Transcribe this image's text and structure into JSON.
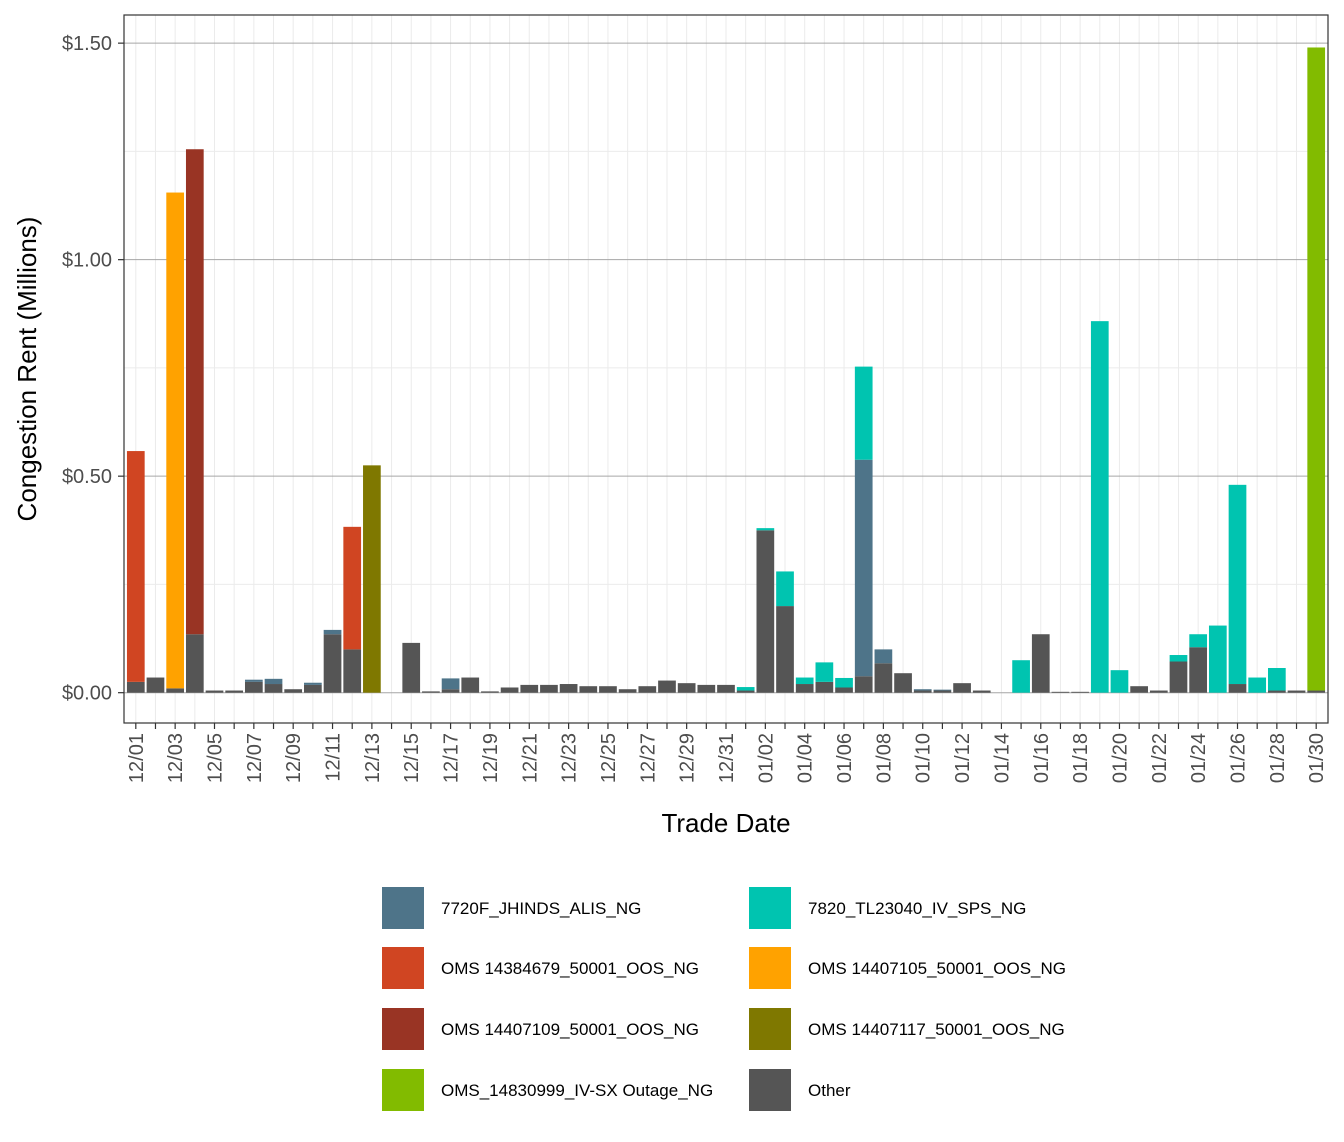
{
  "chart_data": {
    "type": "bar",
    "stacked": true,
    "xlabel": "Trade Date",
    "ylabel": "Congestion Rent (Millions)",
    "ylim": [
      -0.07,
      1.565
    ],
    "y_ticks": [
      0,
      0.5,
      1.0,
      1.5
    ],
    "y_tick_labels": [
      "$0.00",
      "$0.50",
      "$1.00",
      "$1.50"
    ],
    "grid": true,
    "legend_position": "bottom",
    "categories": [
      "12/01",
      "12/02",
      "12/03",
      "12/04",
      "12/05",
      "12/06",
      "12/07",
      "12/08",
      "12/09",
      "12/10",
      "12/11",
      "12/12",
      "12/13",
      "12/14",
      "12/15",
      "12/16",
      "12/17",
      "12/18",
      "12/19",
      "12/20",
      "12/21",
      "12/22",
      "12/23",
      "12/24",
      "12/25",
      "12/26",
      "12/27",
      "12/28",
      "12/29",
      "12/30",
      "12/31",
      "01/01",
      "01/02",
      "01/03",
      "01/04",
      "01/05",
      "01/06",
      "01/07",
      "01/08",
      "01/09",
      "01/10",
      "01/11",
      "01/12",
      "01/13",
      "01/14",
      "01/15",
      "01/16",
      "01/17",
      "01/18",
      "01/19",
      "01/20",
      "01/21",
      "01/22",
      "01/23",
      "01/24",
      "01/25",
      "01/26",
      "01/27",
      "01/28",
      "01/29",
      "01/30"
    ],
    "x_tick_labels": [
      "12/01",
      "12/03",
      "12/05",
      "12/07",
      "12/09",
      "12/11",
      "12/13",
      "12/15",
      "12/17",
      "12/19",
      "12/21",
      "12/23",
      "12/25",
      "12/27",
      "12/29",
      "12/31",
      "01/02",
      "01/04",
      "01/06",
      "01/08",
      "01/10",
      "01/12",
      "01/14",
      "01/16",
      "01/18",
      "01/20",
      "01/22",
      "01/24",
      "01/26",
      "01/28",
      "01/30"
    ],
    "series": [
      {
        "name": "Other",
        "color": "#555555",
        "values": [
          0.025,
          0.035,
          0.01,
          0.135,
          0.005,
          0.005,
          0.025,
          0.02,
          0.008,
          0.018,
          0.135,
          0.1,
          0,
          0,
          0.115,
          0.003,
          0.008,
          0.035,
          0.003,
          0.012,
          0.018,
          0.018,
          0.02,
          0.015,
          0.015,
          0.008,
          0.015,
          0.028,
          0.022,
          0.018,
          0.018,
          0.005,
          0.375,
          0.2,
          0.02,
          0.025,
          0.012,
          0.038,
          0.068,
          0.045,
          0.005,
          0.005,
          0.022,
          0.005,
          0,
          0,
          0.135,
          0.002,
          0.002,
          0,
          0,
          0.015,
          0.005,
          0.072,
          0.105,
          0,
          0.02,
          0,
          0.005,
          0.005,
          0.005
        ]
      },
      {
        "name": "7720F_JHINDS_ALIS_NG",
        "color": "#4e7489",
        "values": [
          0,
          0,
          0,
          0,
          0,
          0,
          0.005,
          0.012,
          0,
          0.005,
          0.01,
          0,
          0,
          0,
          0,
          0,
          0.025,
          0,
          0,
          0,
          0,
          0,
          0,
          0,
          0,
          0,
          0,
          0,
          0,
          0,
          0,
          0,
          0,
          0,
          0,
          0,
          0,
          0.5,
          0.032,
          0,
          0.003,
          0.002,
          0,
          0,
          0,
          0,
          0,
          0,
          0,
          0,
          0,
          0,
          0,
          0,
          0,
          0,
          0,
          0,
          0,
          0,
          0
        ]
      },
      {
        "name": "7820_TL23040_IV_SPS_NG",
        "color": "#00c4b0",
        "values": [
          0,
          0,
          0,
          0,
          0,
          0,
          0,
          0,
          0,
          0,
          0,
          0,
          0,
          0,
          0,
          0,
          0,
          0,
          0,
          0,
          0,
          0,
          0,
          0,
          0,
          0,
          0,
          0,
          0,
          0,
          0,
          0.008,
          0.005,
          0.08,
          0.015,
          0.045,
          0.022,
          0.215,
          0,
          0,
          0,
          0,
          0,
          0,
          0,
          0.075,
          0,
          0,
          0,
          0.858,
          0.052,
          0,
          0,
          0.015,
          0.03,
          0.155,
          0.46,
          0.035,
          0.052,
          0,
          0
        ]
      },
      {
        "name": "OMS 14384679_50001_OOS_NG",
        "color": "#d04522",
        "values": [
          0.533,
          0,
          0,
          0,
          0,
          0,
          0,
          0,
          0,
          0,
          0,
          0.283,
          0,
          0,
          0,
          0,
          0,
          0,
          0,
          0,
          0,
          0,
          0,
          0,
          0,
          0,
          0,
          0,
          0,
          0,
          0,
          0,
          0,
          0,
          0,
          0,
          0,
          0,
          0,
          0,
          0,
          0,
          0,
          0,
          0,
          0,
          0,
          0,
          0,
          0,
          0,
          0,
          0,
          0,
          0,
          0,
          0,
          0,
          0,
          0,
          0
        ]
      },
      {
        "name": "OMS 14407105_50001_OOS_NG",
        "color": "#ffa200",
        "values": [
          0,
          0,
          1.145,
          0,
          0,
          0,
          0,
          0,
          0,
          0,
          0,
          0,
          0,
          0,
          0,
          0,
          0,
          0,
          0,
          0,
          0,
          0,
          0,
          0,
          0,
          0,
          0,
          0,
          0,
          0,
          0,
          0,
          0,
          0,
          0,
          0,
          0,
          0,
          0,
          0,
          0,
          0,
          0,
          0,
          0,
          0,
          0,
          0,
          0,
          0,
          0,
          0,
          0,
          0,
          0,
          0,
          0,
          0,
          0,
          0,
          0
        ]
      },
      {
        "name": "OMS 14407109_50001_OOS_NG",
        "color": "#993424",
        "values": [
          0,
          0,
          0,
          1.12,
          0,
          0,
          0,
          0,
          0,
          0,
          0,
          0,
          0,
          0,
          0,
          0,
          0,
          0,
          0,
          0,
          0,
          0,
          0,
          0,
          0,
          0,
          0,
          0,
          0,
          0,
          0,
          0,
          0,
          0,
          0,
          0,
          0,
          0,
          0,
          0,
          0,
          0,
          0,
          0,
          0,
          0,
          0,
          0,
          0,
          0,
          0,
          0,
          0,
          0,
          0,
          0,
          0,
          0,
          0,
          0,
          0
        ]
      },
      {
        "name": "OMS 14407117_50001_OOS_NG",
        "color": "#7f7800",
        "values": [
          0,
          0,
          0,
          0,
          0,
          0,
          0,
          0,
          0,
          0,
          0,
          0,
          0.525,
          0,
          0,
          0,
          0,
          0,
          0,
          0,
          0,
          0,
          0,
          0,
          0,
          0,
          0,
          0,
          0,
          0,
          0,
          0,
          0,
          0,
          0,
          0,
          0,
          0,
          0,
          0,
          0,
          0,
          0,
          0,
          0,
          0,
          0,
          0,
          0,
          0,
          0,
          0,
          0,
          0,
          0,
          0,
          0,
          0,
          0,
          0,
          0
        ]
      },
      {
        "name": "OMS_14830999_IV-SX Outage_NG",
        "color": "#82bb00",
        "values": [
          0,
          0,
          0,
          0,
          0,
          0,
          0,
          0,
          0,
          0,
          0,
          0,
          0,
          0,
          0,
          0,
          0,
          0,
          0,
          0,
          0,
          0,
          0,
          0,
          0,
          0,
          0,
          0,
          0,
          0,
          0,
          0,
          0,
          0,
          0,
          0,
          0,
          0,
          0,
          0,
          0,
          0,
          0,
          0,
          0,
          0,
          0,
          0,
          0,
          0,
          0,
          0,
          0,
          0,
          0,
          0,
          0,
          0,
          0,
          0,
          1.485
        ]
      }
    ],
    "legend": [
      {
        "label": "7720F_JHINDS_ALIS_NG",
        "color": "#4e7489"
      },
      {
        "label": "7820_TL23040_IV_SPS_NG",
        "color": "#00c4b0"
      },
      {
        "label": "OMS 14384679_50001_OOS_NG",
        "color": "#d04522"
      },
      {
        "label": "OMS 14407105_50001_OOS_NG",
        "color": "#ffa200"
      },
      {
        "label": "OMS 14407109_50001_OOS_NG",
        "color": "#993424"
      },
      {
        "label": "OMS 14407117_50001_OOS_NG",
        "color": "#7f7800"
      },
      {
        "label": "OMS_14830999_IV-SX Outage_NG",
        "color": "#82bb00"
      },
      {
        "label": "Other",
        "color": "#555555"
      }
    ]
  }
}
